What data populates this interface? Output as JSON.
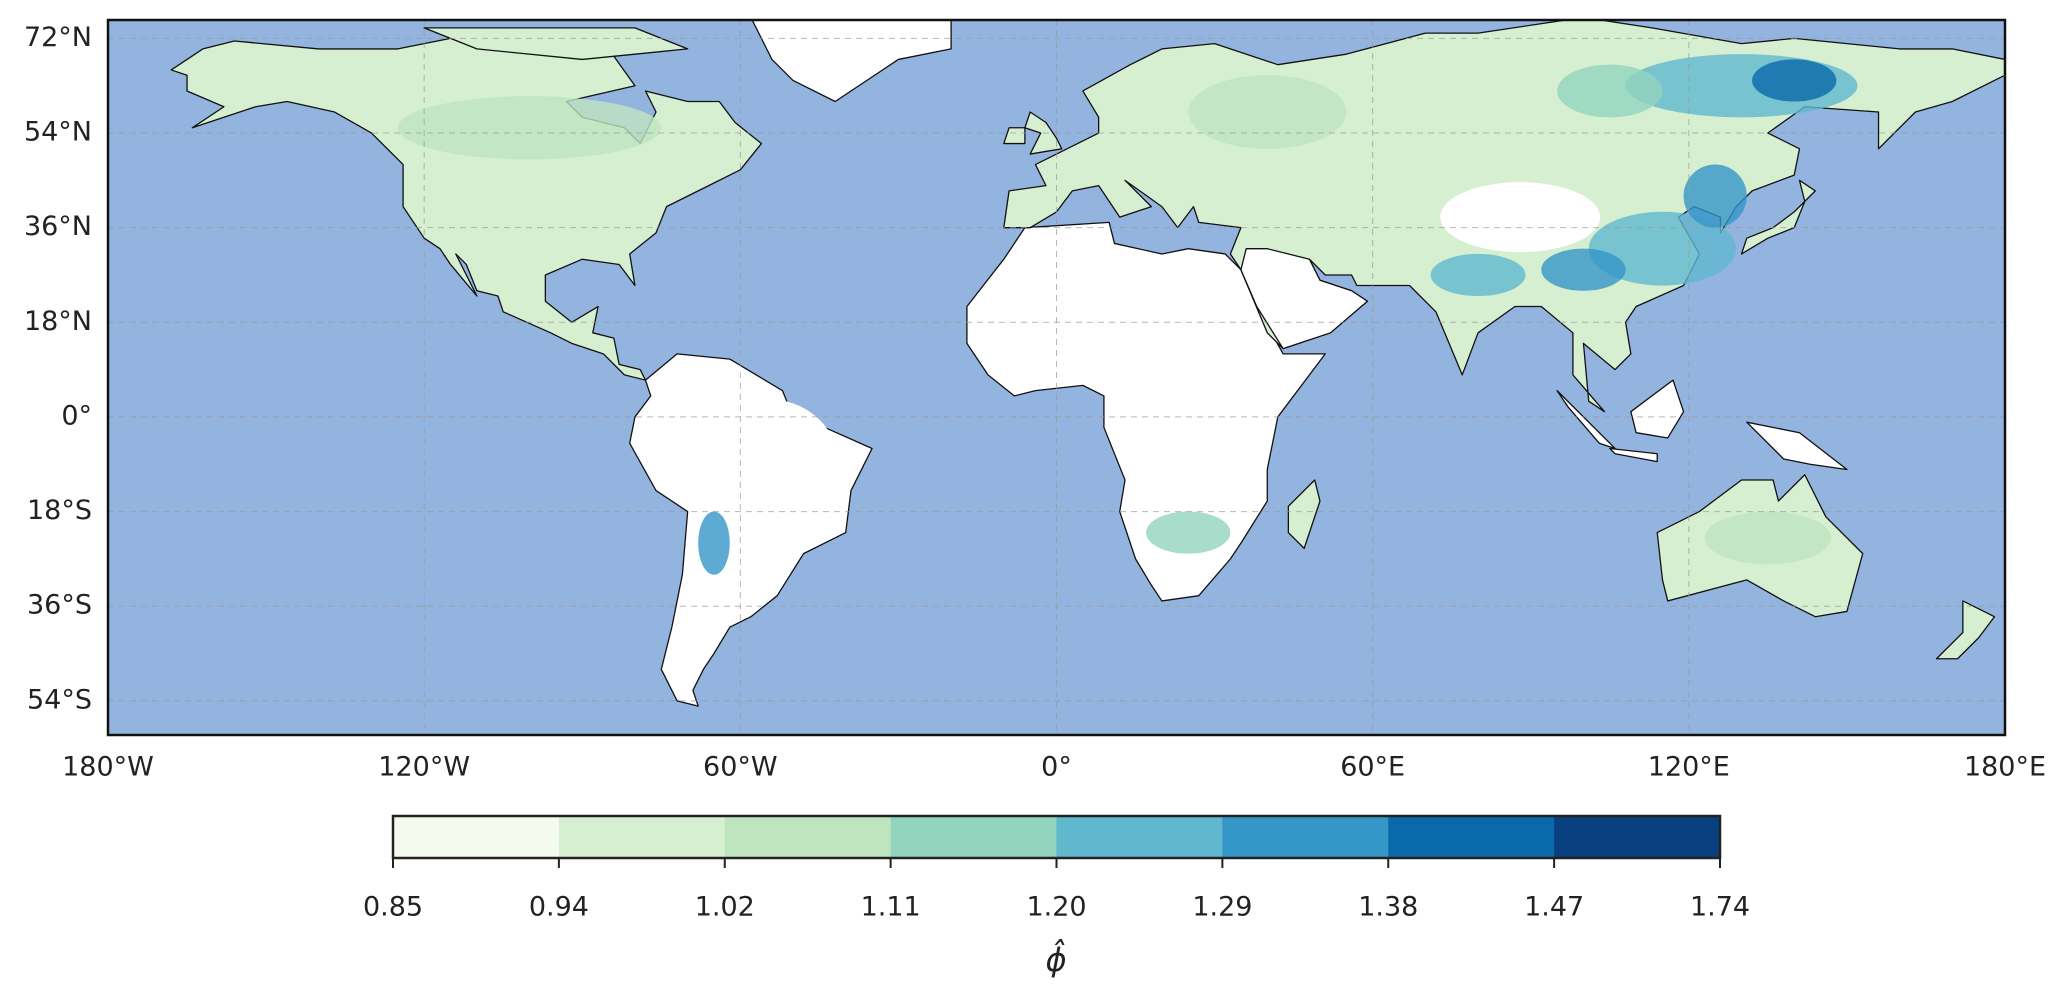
{
  "map": {
    "type": "map",
    "xlim": [
      -180,
      180
    ],
    "ylim": [
      -60.5,
      75.5
    ],
    "xticks": [
      {
        "value": -180,
        "label": "180°W"
      },
      {
        "value": -120,
        "label": "120°W"
      },
      {
        "value": -60,
        "label": "60°W"
      },
      {
        "value": 0,
        "label": "0°"
      },
      {
        "value": 60,
        "label": "60°E"
      },
      {
        "value": 120,
        "label": "120°E"
      },
      {
        "value": 180,
        "label": "180°E"
      }
    ],
    "yticks": [
      {
        "value": -54,
        "label": "54°S"
      },
      {
        "value": -36,
        "label": "36°S"
      },
      {
        "value": -18,
        "label": "18°S"
      },
      {
        "value": 0,
        "label": "0°"
      },
      {
        "value": 18,
        "label": "18°N"
      },
      {
        "value": 36,
        "label": "36°N"
      },
      {
        "value": 54,
        "label": "54°N"
      },
      {
        "value": 72,
        "label": "72°N"
      }
    ],
    "grid": true,
    "ocean_color": "#94b4e0",
    "colorbar": {
      "label": "ϕ̂",
      "ticks": [
        {
          "value": 0.85,
          "label": "0.85"
        },
        {
          "value": 0.94,
          "label": "0.94"
        },
        {
          "value": 1.02,
          "label": "1.02"
        },
        {
          "value": 1.11,
          "label": "1.11"
        },
        {
          "value": 1.2,
          "label": "1.20"
        },
        {
          "value": 1.29,
          "label": "1.29"
        },
        {
          "value": 1.38,
          "label": "1.38"
        },
        {
          "value": 1.47,
          "label": "1.47"
        },
        {
          "value": 1.74,
          "label": "1.74"
        }
      ],
      "colors": [
        "#f4fbee",
        "#d6efd0",
        "#bfe5bf",
        "#93d4be",
        "#60b8cf",
        "#3596c8",
        "#0a69ab",
        "#073f7f"
      ]
    }
  }
}
